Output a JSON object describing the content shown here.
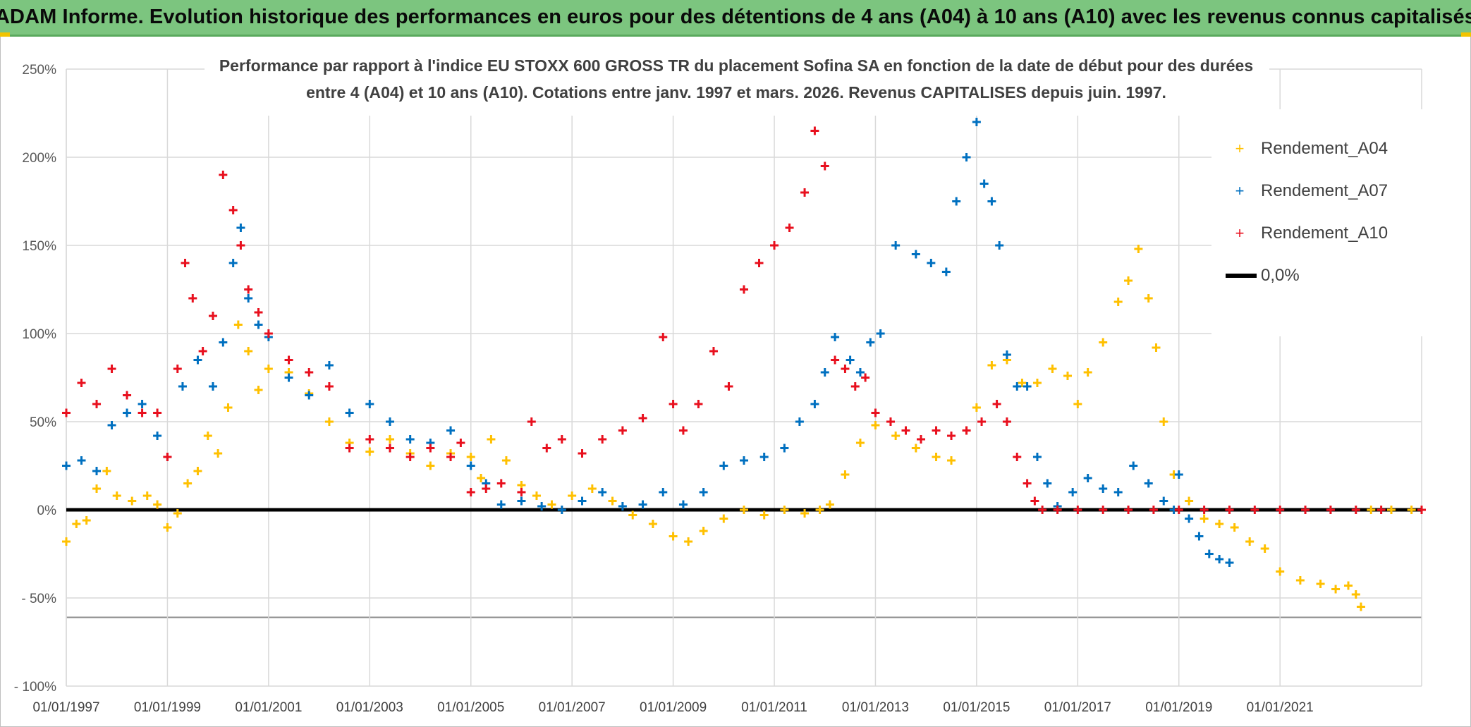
{
  "header": {
    "title": "ADAM Informe. Evolution historique des performances en euros pour des détentions de 4 ans (A04) à 10 ans (A10) avec les revenus connus capitalisés"
  },
  "colors": {
    "banner": "#7cc57f",
    "A04": "#ffc000",
    "A07": "#0070c0",
    "A10": "#e8101e",
    "zero": "#000000",
    "grid": "#d9d9d9"
  },
  "chart_data": {
    "type": "scatter",
    "title_line1": "Performance par rapport à l'indice EU STOXX 600 GROSS TR  du placement Sofina SA en fonction de la date de début pour des durées",
    "title_line2": "entre 4 (A04) et 10 ans (A10). Cotations entre janv. 1997 et mars. 2026. Revenus CAPITALISES depuis juin. 1997.",
    "xlim": [
      1997.0,
      2023.8
    ],
    "ylim": [
      -100,
      250
    ],
    "y_ticks": [
      250,
      200,
      150,
      100,
      50,
      0,
      -50,
      -100
    ],
    "y_tick_labels": [
      "250%",
      "200%",
      "150%",
      "100%",
      "50%",
      "0%",
      "- 50%",
      "- 100%"
    ],
    "x_ticks": [
      1997,
      1999,
      2001,
      2003,
      2005,
      2007,
      2009,
      2011,
      2013,
      2015,
      2017,
      2019,
      2021
    ],
    "x_tick_labels": [
      "01/01/1997",
      "01/01/1999",
      "01/01/2001",
      "01/01/2003",
      "01/01/2005",
      "01/01/2007",
      "01/01/2009",
      "01/01/2011",
      "01/01/2013",
      "01/01/2015",
      "01/01/2017",
      "01/01/2019",
      "01/01/2021"
    ],
    "legend": [
      "Rendement_A04",
      "Rendement_A07",
      "Rendement_A10",
      "0,0%"
    ],
    "legend_position": "top-right",
    "series": [
      {
        "name": "Rendement_A04",
        "x": [
          1997.0,
          1997.2,
          1997.4,
          1997.6,
          1997.8,
          1998.0,
          1998.3,
          1998.6,
          1998.8,
          1999.0,
          1999.2,
          1999.4,
          1999.6,
          1999.8,
          2000.0,
          2000.2,
          2000.4,
          2000.6,
          2000.8,
          2001.0,
          2001.4,
          2001.8,
          2002.2,
          2002.6,
          2003.0,
          2003.4,
          2003.8,
          2004.2,
          2004.6,
          2005.0,
          2005.2,
          2005.4,
          2005.7,
          2006.0,
          2006.3,
          2006.6,
          2007.0,
          2007.4,
          2007.8,
          2008.2,
          2008.6,
          2009.0,
          2009.3,
          2009.6,
          2010.0,
          2010.4,
          2010.8,
          2011.2,
          2011.6,
          2011.9,
          2012.1,
          2012.4,
          2012.7,
          2013.0,
          2013.4,
          2013.8,
          2014.2,
          2014.5,
          2014.8,
          2015.0,
          2015.3,
          2015.6,
          2015.9,
          2016.2,
          2016.5,
          2016.8,
          2017.0,
          2017.2,
          2017.5,
          2017.8,
          2018.0,
          2018.2,
          2018.4,
          2018.55,
          2018.7,
          2018.9,
          2019.2,
          2019.5,
          2019.8,
          2020.1,
          2020.4,
          2020.7,
          2021.0,
          2021.4,
          2021.8,
          2022.1,
          2022.35,
          2022.5,
          2022.6,
          2022.8,
          2023.2,
          2023.6,
          2023.8
        ],
        "values": [
          -18,
          -8,
          -6,
          12,
          22,
          8,
          5,
          8,
          3,
          -10,
          -2,
          15,
          22,
          42,
          32,
          58,
          105,
          90,
          68,
          80,
          78,
          66,
          50,
          38,
          33,
          40,
          32,
          25,
          32,
          30,
          18,
          40,
          28,
          14,
          8,
          3,
          8,
          12,
          5,
          -3,
          -8,
          -15,
          -18,
          -12,
          -5,
          0,
          -3,
          0,
          -2,
          0,
          3,
          20,
          38,
          48,
          42,
          35,
          30,
          28,
          45,
          58,
          82,
          85,
          72,
          72,
          80,
          76,
          60,
          78,
          95,
          118,
          130,
          148,
          120,
          92,
          50,
          20,
          5,
          -5,
          -8,
          -10,
          -18,
          -22,
          -35,
          -40,
          -42,
          -45,
          -43,
          -48,
          -55,
          0,
          0,
          0,
          0
        ]
      },
      {
        "name": "Rendement_A07",
        "x": [
          1997.0,
          1997.3,
          1997.6,
          1997.9,
          1998.2,
          1998.5,
          1998.8,
          1999.0,
          1999.3,
          1999.6,
          1999.9,
          2000.1,
          2000.3,
          2000.45,
          2000.6,
          2000.8,
          2001.0,
          2001.4,
          2001.8,
          2002.2,
          2002.6,
          2003.0,
          2003.4,
          2003.8,
          2004.2,
          2004.6,
          2005.0,
          2005.3,
          2005.6,
          2006.0,
          2006.4,
          2006.8,
          2007.2,
          2007.6,
          2008.0,
          2008.4,
          2008.8,
          2009.2,
          2009.6,
          2010.0,
          2010.4,
          2010.8,
          2011.2,
          2011.5,
          2011.8,
          2012.0,
          2012.2,
          2012.5,
          2012.7,
          2012.9,
          2013.1,
          2013.4,
          2013.8,
          2014.1,
          2014.4,
          2014.6,
          2014.8,
          2015.0,
          2015.15,
          2015.3,
          2015.45,
          2015.6,
          2015.8,
          2016.0,
          2016.2,
          2016.4,
          2016.6,
          2016.9,
          2017.2,
          2017.5,
          2017.8,
          2018.1,
          2018.4,
          2018.7,
          2018.9,
          2019.0,
          2019.2,
          2019.4,
          2019.6,
          2019.8,
          2020.0
        ],
        "values": [
          25,
          28,
          22,
          48,
          55,
          60,
          42,
          30,
          70,
          85,
          70,
          95,
          140,
          160,
          120,
          105,
          98,
          75,
          65,
          82,
          55,
          60,
          50,
          40,
          38,
          45,
          25,
          15,
          3,
          5,
          2,
          0,
          5,
          10,
          2,
          3,
          10,
          3,
          10,
          25,
          28,
          30,
          35,
          50,
          60,
          78,
          98,
          85,
          78,
          95,
          100,
          150,
          145,
          140,
          135,
          175,
          200,
          220,
          185,
          175,
          150,
          88,
          70,
          70,
          30,
          15,
          2,
          10,
          18,
          12,
          10,
          25,
          15,
          5,
          0,
          20,
          -5,
          -15,
          -25,
          -28,
          -30
        ]
      },
      {
        "name": "Rendement_A10",
        "x": [
          1997.0,
          1997.3,
          1997.6,
          1997.9,
          1998.2,
          1998.5,
          1998.8,
          1999.0,
          1999.2,
          1999.35,
          1999.5,
          1999.7,
          1999.9,
          2000.1,
          2000.3,
          2000.45,
          2000.6,
          2000.8,
          2001.0,
          2001.4,
          2001.8,
          2002.2,
          2002.6,
          2003.0,
          2003.4,
          2003.8,
          2004.2,
          2004.6,
          2004.8,
          2005.0,
          2005.3,
          2005.6,
          2006.0,
          2006.2,
          2006.5,
          2006.8,
          2007.2,
          2007.6,
          2008.0,
          2008.4,
          2008.8,
          2009.0,
          2009.2,
          2009.5,
          2009.8,
          2010.1,
          2010.4,
          2010.7,
          2011.0,
          2011.3,
          2011.6,
          2011.8,
          2012.0,
          2012.2,
          2012.4,
          2012.6,
          2012.8,
          2013.0,
          2013.3,
          2013.6,
          2013.9,
          2014.2,
          2014.5,
          2014.8,
          2015.1,
          2015.4,
          2015.6,
          2015.8,
          2016.0,
          2016.15,
          2016.3,
          2016.6,
          2017.0,
          2017.5,
          2018.0,
          2018.5,
          2019.0,
          2019.5,
          2020.0,
          2020.5,
          2021.0,
          2021.5,
          2022.0,
          2022.5,
          2023.0,
          2023.8
        ],
        "values": [
          55,
          72,
          60,
          80,
          65,
          55,
          55,
          30,
          80,
          140,
          120,
          90,
          110,
          190,
          170,
          150,
          125,
          112,
          100,
          85,
          78,
          70,
          35,
          40,
          35,
          30,
          35,
          30,
          38,
          10,
          12,
          15,
          10,
          50,
          35,
          40,
          32,
          40,
          45,
          52,
          98,
          60,
          45,
          60,
          90,
          70,
          125,
          140,
          150,
          160,
          180,
          215,
          195,
          85,
          80,
          70,
          75,
          55,
          50,
          45,
          40,
          45,
          42,
          45,
          50,
          60,
          50,
          30,
          15,
          5,
          0,
          0,
          0,
          0,
          0,
          0,
          0,
          0,
          0,
          0,
          0,
          0,
          0,
          0,
          0,
          0
        ]
      },
      {
        "name": "0,0%",
        "x": [
          1997.0,
          2023.8
        ],
        "values": [
          0,
          0
        ]
      }
    ]
  }
}
